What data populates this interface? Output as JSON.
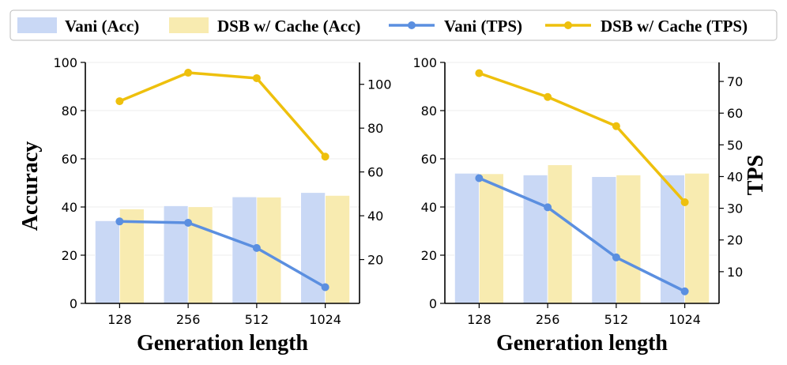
{
  "legend": {
    "vani_acc": "Vani (Acc)",
    "dsb_acc": "DSB w/ Cache (Acc)",
    "vani_tps": "Vani (TPS)",
    "dsb_tps": "DSB w/ Cache (TPS)"
  },
  "colors": {
    "vani_bar": "#c9d8f5",
    "dsb_bar": "#f8ebb0",
    "vani_line": "#5b8fe0",
    "dsb_line": "#eec00d"
  },
  "chart_data": [
    {
      "type": "bar+line",
      "categories": [
        "128",
        "256",
        "512",
        "1024"
      ],
      "xlabel": "Generation length",
      "ylabel": "Accuracy",
      "ylabel_right": "",
      "ylim": [
        0,
        100
      ],
      "yticks": [
        0,
        20,
        40,
        60,
        80,
        100
      ],
      "y2lim": [
        0,
        110
      ],
      "y2ticks": [
        20,
        40,
        60,
        80,
        100
      ],
      "series": [
        {
          "name": "Vani (Acc)",
          "kind": "bar",
          "axis": "left",
          "values": [
            34.3,
            40.5,
            44.2,
            46.0
          ]
        },
        {
          "name": "DSB w/ Cache (Acc)",
          "kind": "bar",
          "axis": "left",
          "values": [
            39.2,
            40.1,
            44.1,
            44.8
          ]
        },
        {
          "name": "Vani (TPS)",
          "kind": "line",
          "axis": "right",
          "values": [
            37.4,
            36.8,
            25.3,
            7.4
          ]
        },
        {
          "name": "DSB w/ Cache (TPS)",
          "kind": "line",
          "axis": "right",
          "values": [
            92.3,
            105.3,
            102.8,
            67.0
          ]
        }
      ]
    },
    {
      "type": "bar+line",
      "categories": [
        "128",
        "256",
        "512",
        "1024"
      ],
      "xlabel": "Generation length",
      "ylabel": "",
      "ylabel_right": "TPS",
      "ylim": [
        0,
        100
      ],
      "yticks": [
        0,
        20,
        40,
        60,
        80,
        100
      ],
      "y2lim": [
        0,
        76
      ],
      "y2ticks": [
        10,
        20,
        30,
        40,
        50,
        60,
        70
      ],
      "series": [
        {
          "name": "Vani (Acc)",
          "kind": "bar",
          "axis": "left",
          "values": [
            54.0,
            53.3,
            52.6,
            53.3
          ]
        },
        {
          "name": "DSB w/ Cache (Acc)",
          "kind": "bar",
          "axis": "left",
          "values": [
            53.8,
            57.5,
            53.3,
            54.0
          ]
        },
        {
          "name": "Vani (TPS)",
          "kind": "line",
          "axis": "right",
          "values": [
            39.5,
            30.3,
            14.5,
            3.8
          ]
        },
        {
          "name": "DSB w/ Cache (TPS)",
          "kind": "line",
          "axis": "right",
          "values": [
            72.6,
            65.1,
            55.9,
            31.9
          ]
        }
      ]
    }
  ]
}
